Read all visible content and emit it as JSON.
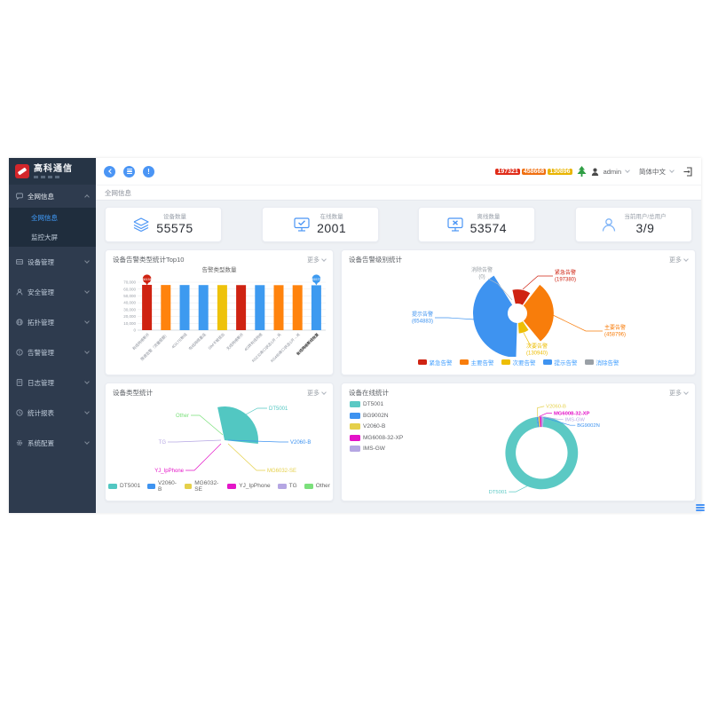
{
  "brand": {
    "name": "高科通信"
  },
  "header": {
    "badges": [
      {
        "value": "197321",
        "color": "#e02b18"
      },
      {
        "value": "458668",
        "color": "#f06f10"
      },
      {
        "value": "130896",
        "color": "#e9b400"
      }
    ],
    "user": "admin",
    "language": "简体中文"
  },
  "breadcrumb": "全网信息",
  "more_label": "更多",
  "sidebar": {
    "items": [
      {
        "label": "全网信息",
        "icon": "message-icon",
        "expanded": true,
        "children": [
          {
            "label": "全网信息",
            "active": true
          },
          {
            "label": "监控大屏",
            "active": false
          }
        ]
      },
      {
        "label": "设备管理",
        "icon": "device-icon"
      },
      {
        "label": "安全管理",
        "icon": "user-icon"
      },
      {
        "label": "拓扑管理",
        "icon": "globe-icon"
      },
      {
        "label": "告警管理",
        "icon": "alarm-icon"
      },
      {
        "label": "日志管理",
        "icon": "log-icon"
      },
      {
        "label": "统计报表",
        "icon": "report-icon"
      },
      {
        "label": "系统配置",
        "icon": "gear-icon"
      }
    ]
  },
  "stats": [
    {
      "label": "设备数量",
      "value": "55575",
      "icon": "layers-icon"
    },
    {
      "label": "在线数量",
      "value": "2001",
      "icon": "monitor-check-icon"
    },
    {
      "label": "离线数量",
      "value": "53574",
      "icon": "monitor-x-icon"
    },
    {
      "label": "当前用户/总用户",
      "value": "3/9",
      "icon": "person-icon"
    }
  ],
  "chart_data": [
    {
      "id": "alarm-type-bar",
      "type": "bar",
      "title": "设备告警类型统计Top10",
      "legend": [
        {
          "label": "告警类型数量",
          "color": "#cf2312"
        }
      ],
      "categories": [
        "有线网络断开",
        "限速告警（流量超额）",
        "4G/LTE断线",
        "有线网络重连",
        "SIM卡被拔出",
        "无线网络断开",
        "4G转有线网络",
        "RS232串口状态1开→关",
        "RS485串口状态1开→关",
        "有线网络断线恢复"
      ],
      "values": [
        66158,
        65950,
        65900,
        65860,
        65830,
        65800,
        65760,
        65720,
        65680,
        65575
      ],
      "bar_colors": [
        "#cf2312",
        "#ff830d",
        "#3d9af0",
        "#3d9af0",
        "#eec20b",
        "#cf2312",
        "#3d9af0",
        "#ff830d",
        "#ff830d",
        "#3d9af0"
      ],
      "ylim": [
        0,
        70000
      ],
      "yticks": [
        "0",
        "10,000",
        "20,000",
        "30,000",
        "40,000",
        "50,000",
        "60,000",
        "70,000"
      ],
      "markers": [
        {
          "index": 0,
          "text": "66158",
          "color": "#cf2312"
        },
        {
          "index": 9,
          "text": "65575",
          "color": "#3d9af0"
        }
      ]
    },
    {
      "id": "alarm-level-rose",
      "type": "rose",
      "title": "设备告警级别统计",
      "slices": [
        {
          "label": "紧急告警",
          "value": 197380,
          "color": "#cf2312"
        },
        {
          "label": "主要告警",
          "value": 458796,
          "color": "#f87d0b"
        },
        {
          "label": "次要告警",
          "value": 130940,
          "color": "#edbe06"
        },
        {
          "label": "提示告警",
          "value": 654883,
          "color": "#3e93f0"
        },
        {
          "label": "消除告警",
          "value": 0,
          "color": "#9aa0a6"
        }
      ],
      "legend_text_color": "#409eff"
    },
    {
      "id": "device-type-pie",
      "type": "pie",
      "title": "设备类型统计",
      "slices": [
        {
          "label": "DT5001",
          "share": 96,
          "color": "#52c7c2"
        },
        {
          "label": "V2060-B",
          "share": 1,
          "color": "#3e93f0"
        },
        {
          "label": "MG6032-SE",
          "share": 1,
          "color": "#e5d04a"
        },
        {
          "label": "YJ_IpPhone",
          "share": 1,
          "color": "#e416c8"
        },
        {
          "label": "TG",
          "share": 0.5,
          "color": "#b5a6e3"
        },
        {
          "label": "Other",
          "share": 0.5,
          "color": "#7be07b"
        }
      ]
    },
    {
      "id": "device-online-donut",
      "type": "donut",
      "title": "设备在线统计",
      "slices": [
        {
          "label": "DT5001",
          "share": 97,
          "color": "#5bc9c4"
        },
        {
          "label": "BG9002N",
          "share": 0.75,
          "color": "#3e93f0"
        },
        {
          "label": "V2060-B",
          "share": 0.75,
          "color": "#e5d04a"
        },
        {
          "label": "MG6008-32-XP",
          "share": 0.75,
          "color": "#e412c8"
        },
        {
          "label": "IMS-GW",
          "share": 0.75,
          "color": "#b5a6e3"
        }
      ]
    }
  ]
}
